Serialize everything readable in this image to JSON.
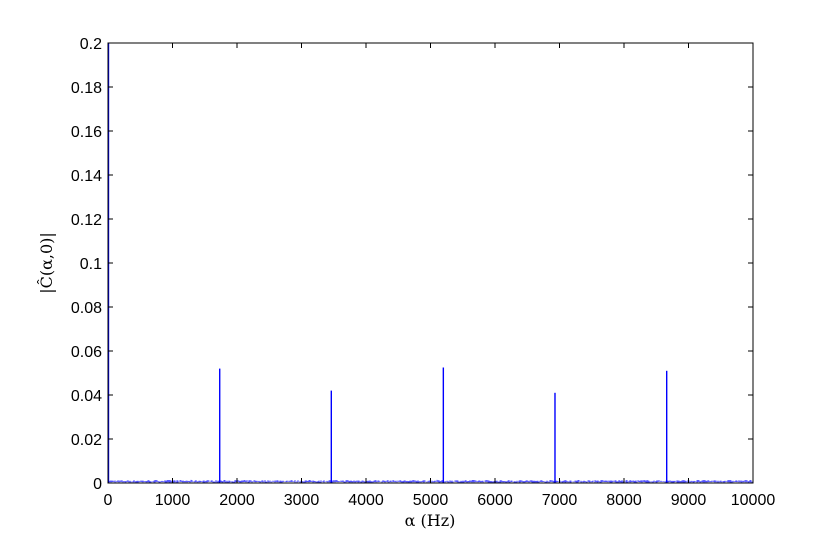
{
  "chart_data": {
    "type": "line",
    "title": "",
    "xlabel": "α (Hz)",
    "ylabel": "|Ĉ(α,0)|",
    "xlim": [
      0,
      10000
    ],
    "ylim": [
      0,
      0.2
    ],
    "xticks": [
      "0",
      "1000",
      "2000",
      "3000",
      "4000",
      "5000",
      "6000",
      "7000",
      "8000",
      "9000",
      "10000"
    ],
    "yticks": [
      "0",
      "0.02",
      "0.04",
      "0.06",
      "0.08",
      "0.1",
      "0.12",
      "0.14",
      "0.16",
      "0.18",
      "0.2"
    ],
    "grid": false,
    "line_color": "#0000ff",
    "noise_floor": 0.001,
    "peaks": [
      {
        "x": 0,
        "y": 0.2
      },
      {
        "x": 1732,
        "y": 0.052
      },
      {
        "x": 3462,
        "y": 0.042
      },
      {
        "x": 5199,
        "y": 0.0525
      },
      {
        "x": 6930,
        "y": 0.041
      },
      {
        "x": 8662,
        "y": 0.051
      }
    ]
  }
}
